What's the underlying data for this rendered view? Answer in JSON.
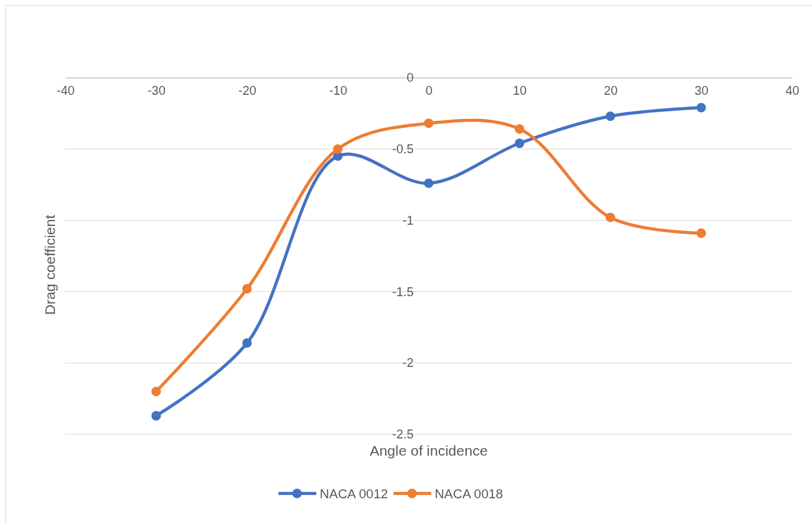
{
  "chart_data": {
    "type": "line",
    "xlabel": "Angle of incidence",
    "ylabel": "Drag coefficient",
    "x": [
      -30,
      -20,
      -10,
      0,
      10,
      20,
      30
    ],
    "series": [
      {
        "name": "NACA 0012",
        "color": "#4472c4",
        "values": [
          -2.37,
          -1.86,
          -0.55,
          -0.74,
          -0.46,
          -0.27,
          -0.21
        ]
      },
      {
        "name": "NACA 0018",
        "color": "#ed7d31",
        "values": [
          -2.2,
          -1.48,
          -0.5,
          -0.32,
          -0.36,
          -0.98,
          -1.09
        ]
      }
    ],
    "xlim": [
      -40,
      40
    ],
    "xticks": [
      -40,
      -30,
      -20,
      -10,
      0,
      10,
      20,
      30,
      40
    ],
    "ylim": [
      -2.5,
      0
    ],
    "yticks": [
      -2.5,
      -2,
      -1.5,
      -1,
      -0.5,
      0
    ],
    "grid": "y",
    "legend": "bottom",
    "marker": "circle",
    "line_style": "solid"
  }
}
